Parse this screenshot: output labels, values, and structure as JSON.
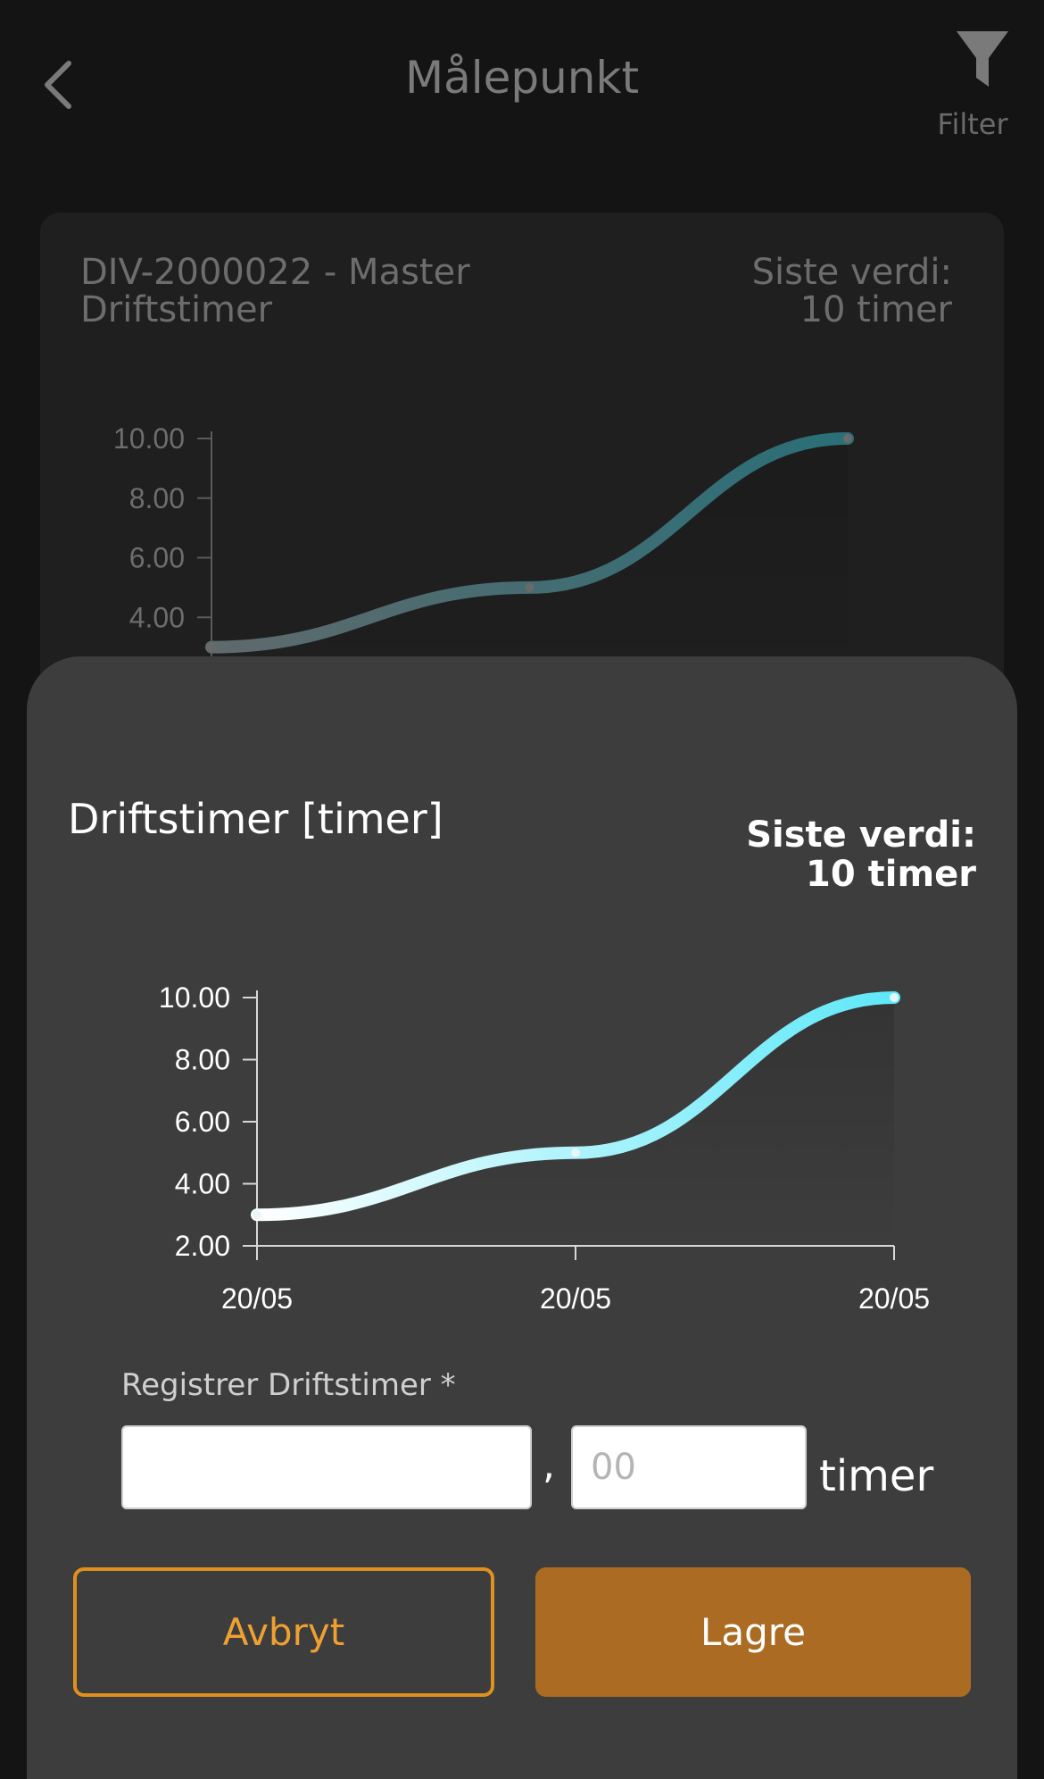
{
  "header": {
    "title": "Målepunkt",
    "back_icon": "chevron-left-icon",
    "filter_icon": "filter-icon",
    "filter_label": "Filter"
  },
  "background_card": {
    "name_line1": "DIV-2000022 - Master",
    "name_line2": "Driftstimer",
    "last_label": "Siste verdi:",
    "last_value": "10 timer"
  },
  "sheet": {
    "title": "Driftstimer [timer]",
    "last_label": "Siste verdi:",
    "last_value": "10 timer",
    "input_label": "Registrer Driftstimer *",
    "input_integer_value": "",
    "input_decimal_placeholder": "00",
    "separator": ",",
    "unit": "timer",
    "cancel_label": "Avbryt",
    "save_label": "Lagre"
  },
  "colors": {
    "accent": "#ab6b22",
    "accent_border": "#e0901e",
    "line_start": "#ffffff",
    "line_end": "#5ee8f8"
  },
  "chart_data": {
    "type": "line",
    "title": "",
    "x": [
      "20/05",
      "20/05",
      "20/05"
    ],
    "series": [
      {
        "values": [
          3,
          5,
          10
        ]
      }
    ],
    "yticks": [
      "2.00",
      "4.00",
      "6.00",
      "8.00",
      "10.00"
    ],
    "ylim": [
      2,
      10
    ],
    "grid": false,
    "legend": "none"
  }
}
